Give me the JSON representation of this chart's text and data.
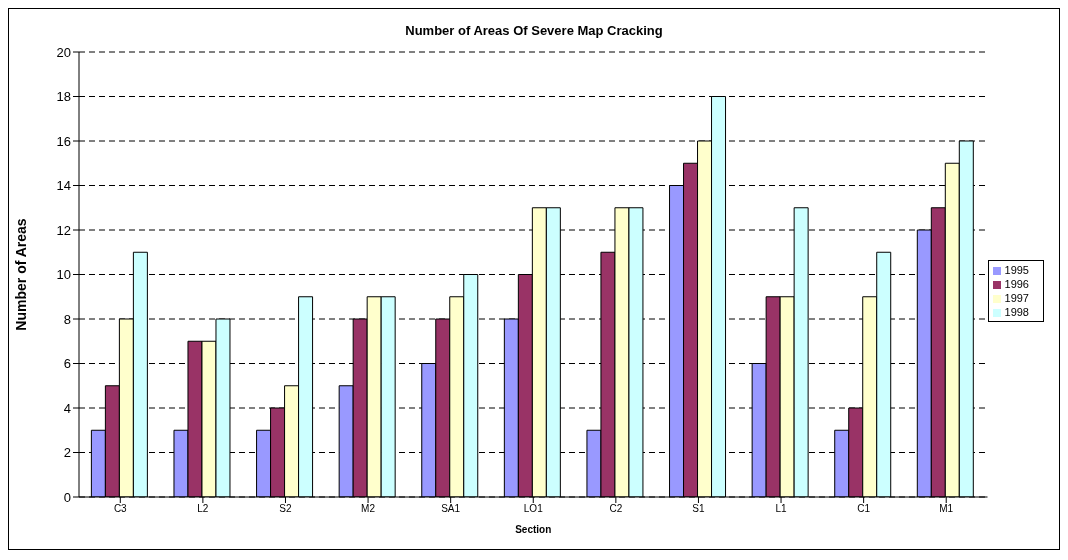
{
  "chart_data": {
    "type": "bar",
    "title": "Number of Areas Of Severe Map Cracking",
    "xlabel": "Section",
    "ylabel": "Number of Areas",
    "categories": [
      "C3",
      "L2",
      "S2",
      "M2",
      "SA1",
      "LO1",
      "C2",
      "S1",
      "L1",
      "C1",
      "M1"
    ],
    "series": [
      {
        "name": "1995",
        "color": "#9999ff",
        "values": [
          3,
          3,
          3,
          5,
          6,
          8,
          3,
          14,
          6,
          3,
          12
        ]
      },
      {
        "name": "1996",
        "color": "#993366",
        "values": [
          5,
          7,
          4,
          8,
          8,
          10,
          11,
          15,
          9,
          4,
          13
        ]
      },
      {
        "name": "1997",
        "color": "#ffffcc",
        "values": [
          8,
          7,
          5,
          9,
          9,
          13,
          13,
          16,
          9,
          9,
          15
        ]
      },
      {
        "name": "1998",
        "color": "#ccffff",
        "values": [
          11,
          8,
          9,
          9,
          10,
          13,
          13,
          18,
          13,
          11,
          16
        ]
      }
    ],
    "ylim": [
      0,
      20
    ],
    "yticks": [
      0,
      2,
      4,
      6,
      8,
      10,
      12,
      14,
      16,
      18,
      20
    ],
    "grid": "y",
    "legend": "right"
  }
}
